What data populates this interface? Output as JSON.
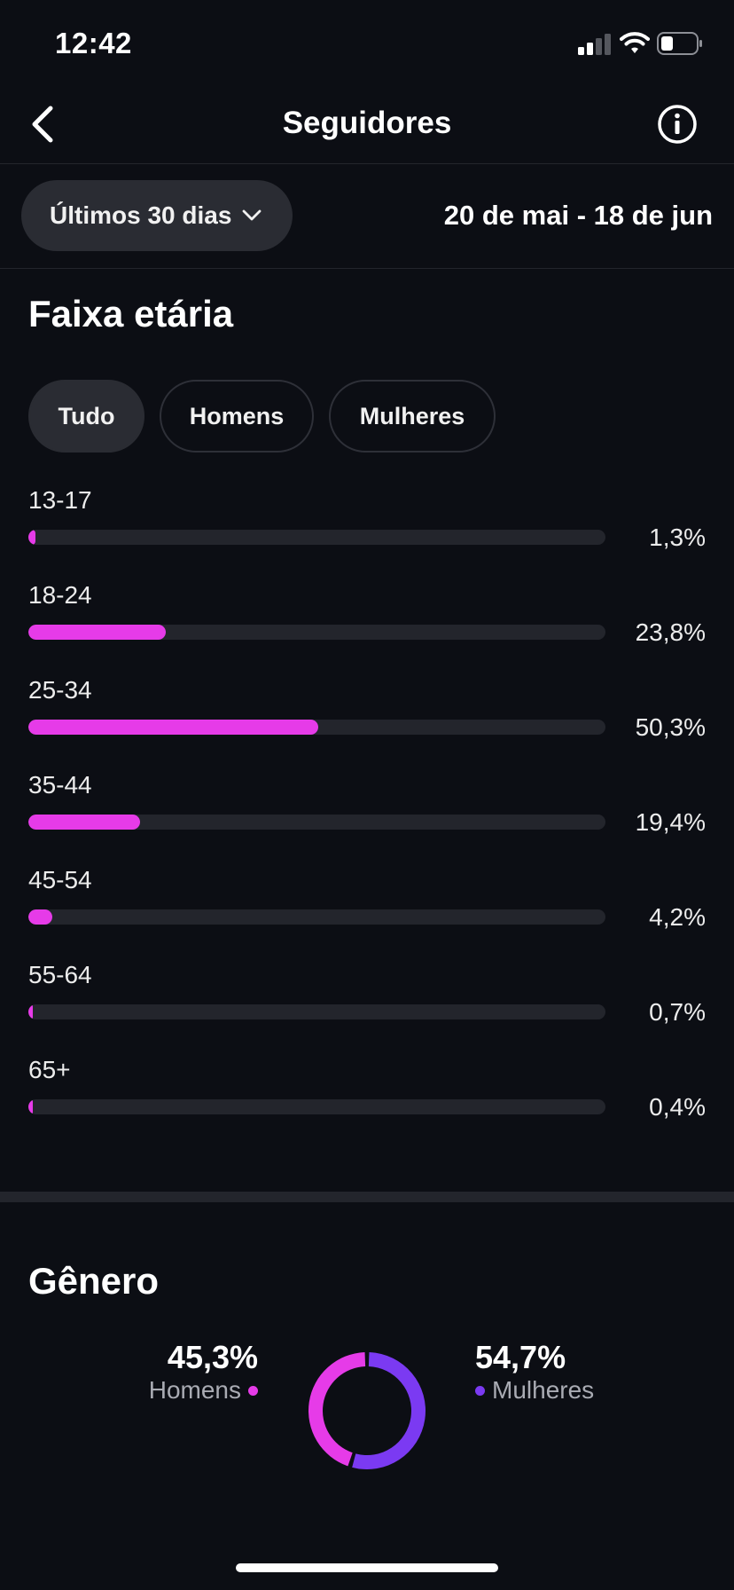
{
  "status_bar": {
    "time": "12:42"
  },
  "nav": {
    "title": "Seguidores"
  },
  "filters": {
    "period": "Últimos 30 dias",
    "date_range": "20 de mai - 18 de jun"
  },
  "age_section": {
    "title": "Faixa etária",
    "tabs": [
      {
        "label": "Tudo",
        "active": true
      },
      {
        "label": "Homens",
        "active": false
      },
      {
        "label": "Mulheres",
        "active": false
      }
    ],
    "rows": [
      {
        "label": "13-17",
        "value_text": "1,3%",
        "value": 1.3
      },
      {
        "label": "18-24",
        "value_text": "23,8%",
        "value": 23.8
      },
      {
        "label": "25-34",
        "value_text": "50,3%",
        "value": 50.3
      },
      {
        "label": "35-44",
        "value_text": "19,4%",
        "value": 19.4
      },
      {
        "label": "45-54",
        "value_text": "4,2%",
        "value": 4.2
      },
      {
        "label": "55-64",
        "value_text": "0,7%",
        "value": 0.7
      },
      {
        "label": "65+",
        "value_text": "0,4%",
        "value": 0.4
      }
    ],
    "bar_scale_max": 100
  },
  "gender_section": {
    "title": "Gênero",
    "men": {
      "pct_text": "45,3%",
      "label": "Homens",
      "value": 45.3
    },
    "women": {
      "pct_text": "54,7%",
      "label": "Mulheres",
      "value": 54.7
    }
  },
  "colors": {
    "background": "#0c0e14",
    "accent_pink": "#e63be8",
    "accent_purple": "#7b3af2",
    "track": "#23252c",
    "chip": "#2a2c33"
  },
  "icons": {
    "back": "chevron-left-icon",
    "info": "info-circle-icon",
    "dropdown": "chevron-down-icon"
  }
}
